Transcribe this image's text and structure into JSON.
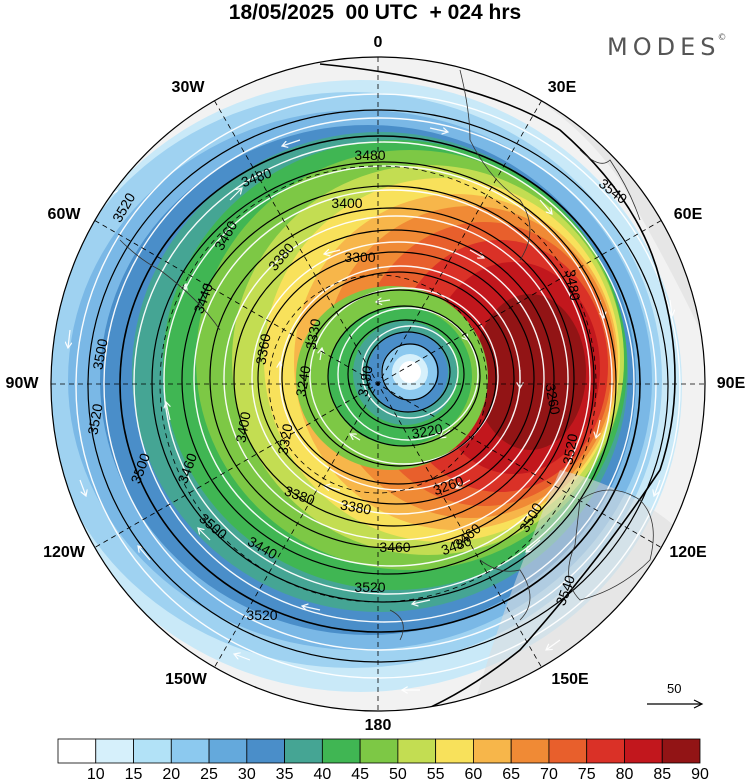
{
  "header": {
    "title": "18/05/2025  00 UTC  + 024 hrs",
    "brand": "MODES",
    "brand_mark": "©"
  },
  "map": {
    "projection": "polar stereographic (south pole centered)",
    "longitude_labels": {
      "top": "0",
      "top_right": "30E",
      "right_upper": "60E",
      "right": "90E",
      "right_lower": "120E",
      "bottom_right": "150E",
      "bottom": "180",
      "bottom_left": "150W",
      "left_lower": "120W",
      "left": "90W",
      "left_upper": "60W",
      "top_left": "30W"
    },
    "contour_labels": [
      "3480",
      "3480",
      "3540",
      "3520",
      "3460",
      "3400",
      "3300",
      "3480",
      "3380",
      "3440",
      "3360",
      "3330",
      "3180",
      "3240",
      "3500",
      "3520",
      "3500",
      "3460",
      "3400",
      "3320",
      "3220",
      "3260",
      "3380",
      "3380",
      "3260",
      "3520",
      "3500",
      "3460",
      "3440",
      "3460",
      "3480",
      "3520",
      "3500",
      "3520",
      "3540"
    ],
    "field": "wind speed (shaded) with geopotential height contours and wind vectors",
    "vector_reference": {
      "value": "50"
    }
  },
  "colorbar": {
    "colors": [
      "#ffffff",
      "#d6f0fb",
      "#b2e2f7",
      "#8cc9ef",
      "#64a9dc",
      "#4a8ec9",
      "#45a594",
      "#40b653",
      "#7dc845",
      "#c3dd52",
      "#f8e15b",
      "#f7b64a",
      "#f08a35",
      "#e85f2c",
      "#da3127",
      "#c2171d",
      "#921415"
    ],
    "labels": [
      "10",
      "15",
      "20",
      "25",
      "30",
      "35",
      "40",
      "45",
      "50",
      "55",
      "60",
      "65",
      "70",
      "75",
      "80",
      "85",
      "90"
    ]
  }
}
